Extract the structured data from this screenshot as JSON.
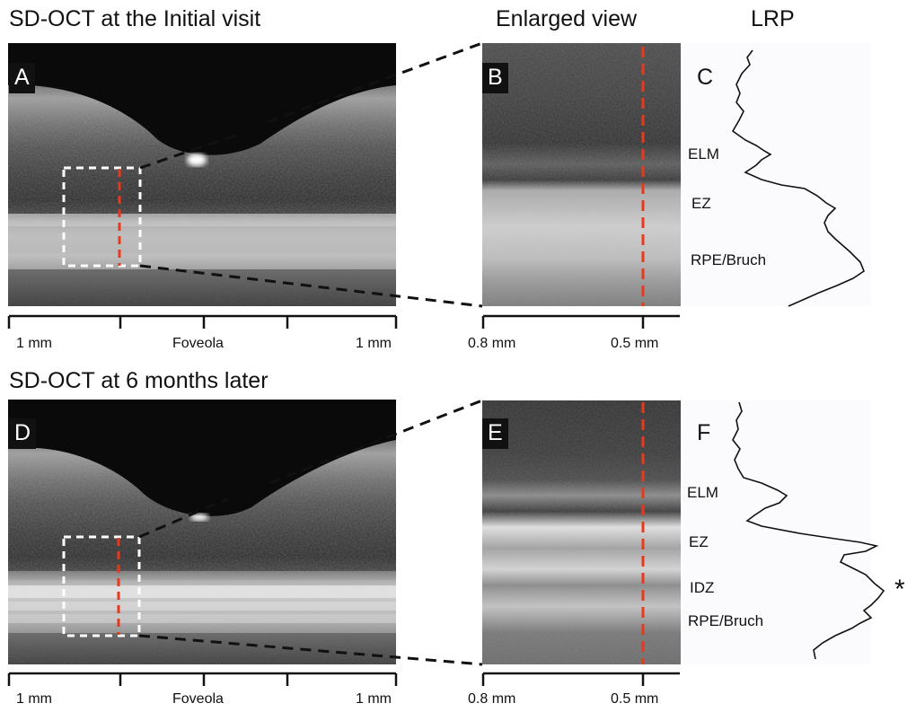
{
  "headings": {
    "top_left": "SD-OCT at the Initial visit",
    "top_middle": "Enlarged view",
    "top_right": "LRP",
    "bottom_left": "SD-OCT at 6 months later"
  },
  "panels": {
    "A": "A",
    "B": "B",
    "C": "C",
    "D": "D",
    "E": "E",
    "F": "F"
  },
  "scale": {
    "left_end": "1 mm",
    "center": "Foveola",
    "right_end": "1 mm",
    "enlarged_left": "0.8 mm",
    "enlarged_right": "0.5 mm"
  },
  "layers_top": {
    "elm": "ELM",
    "ez": "EZ",
    "rpe": "RPE/Bruch"
  },
  "layers_bottom": {
    "elm": "ELM",
    "ez": "EZ",
    "idz": "IDZ",
    "rpe": "RPE/Bruch",
    "asterisk": "*"
  },
  "colors": {
    "dashed_marker": "#e8391a",
    "roi_box": "#ffffff",
    "background": "#ffffff",
    "lrp_panel": "#fbfbfd"
  }
}
